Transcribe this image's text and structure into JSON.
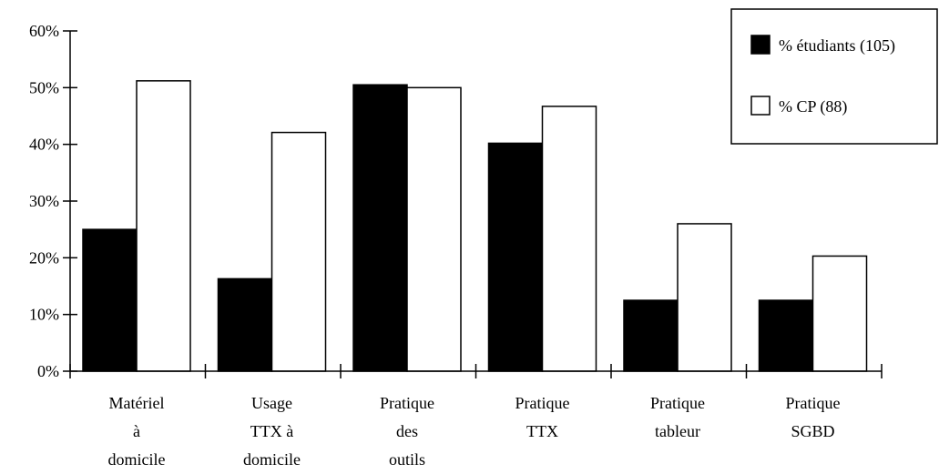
{
  "chart_data": {
    "type": "bar",
    "title": "",
    "xlabel": "",
    "ylabel": "",
    "ylim": [
      0,
      60
    ],
    "yticks": [
      "0%",
      "10%",
      "20%",
      "30%",
      "40%",
      "50%",
      "60%"
    ],
    "categories": [
      [
        "Matériel",
        "à",
        "domicile"
      ],
      [
        "Usage",
        "TTX à",
        "domicile"
      ],
      [
        "Pratique",
        "des",
        "outils"
      ],
      [
        "Pratique",
        "TTX"
      ],
      [
        "Pratique",
        "tableur"
      ],
      [
        "Pratique",
        "SGBD"
      ]
    ],
    "series": [
      {
        "name": "% étudiants (105)",
        "color": "#000000",
        "values": [
          25,
          16.3,
          50.5,
          40.2,
          12.5,
          12.5
        ]
      },
      {
        "name": "% CP (88)",
        "color": "#ffffff",
        "values": [
          51.2,
          42.1,
          50,
          46.7,
          26,
          20.3
        ]
      }
    ],
    "grid": false,
    "legend": "top-right"
  }
}
